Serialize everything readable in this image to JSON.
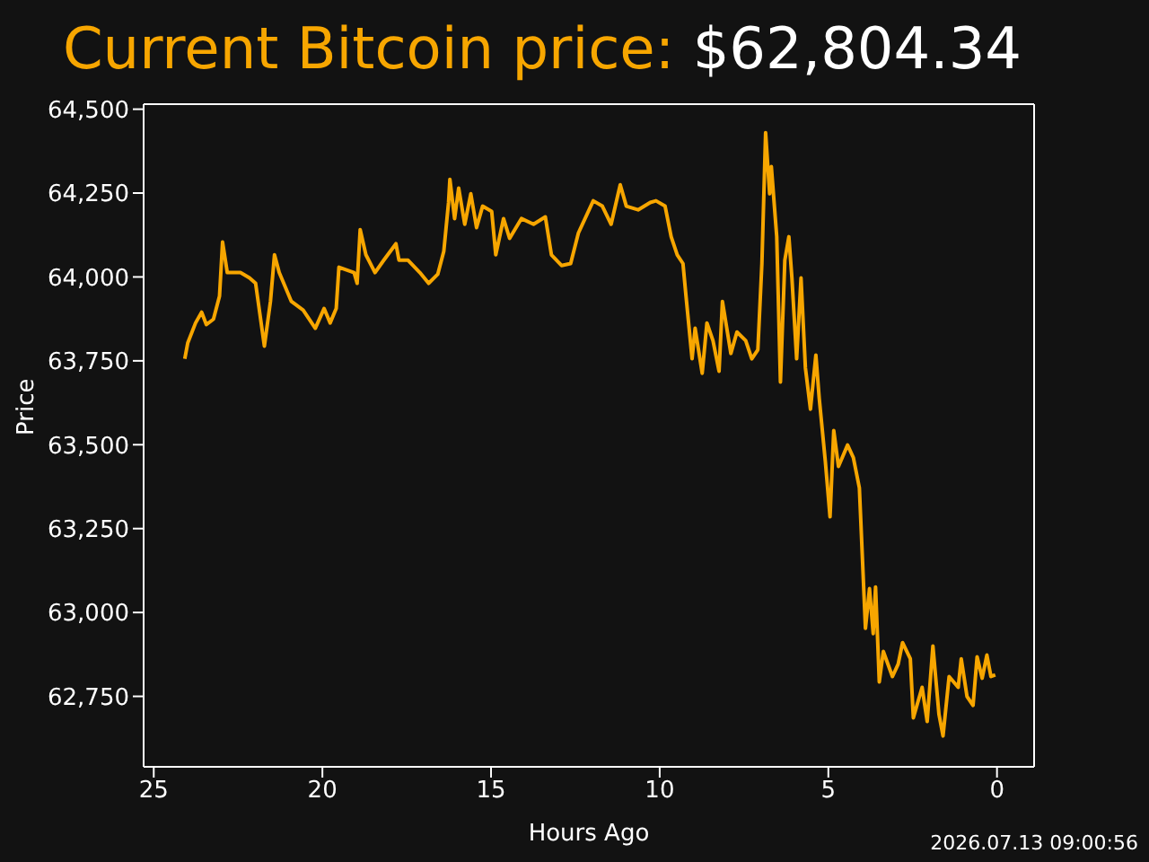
{
  "chart_data": {
    "type": "line",
    "title": "Current Bitcoin price:",
    "subtitle": "$62,804.34",
    "xlabel": "Hours Ago",
    "ylabel": "Price",
    "annotations": [
      "2026.07.13 09:00:56"
    ],
    "x": [
      24.08,
      23.99,
      23.76,
      23.58,
      23.44,
      23.23,
      23.05,
      22.96,
      22.82,
      22.43,
      22.16,
      21.98,
      21.72,
      21.54,
      21.42,
      21.28,
      20.92,
      20.57,
      20.21,
      19.95,
      19.77,
      19.59,
      19.51,
      19.06,
      18.97,
      18.88,
      18.71,
      18.44,
      18.18,
      17.82,
      17.73,
      17.46,
      17.11,
      16.85,
      16.58,
      16.4,
      16.26,
      16.22,
      16.08,
      15.96,
      15.78,
      15.6,
      15.43,
      15.25,
      14.98,
      14.86,
      14.63,
      14.45,
      14.1,
      13.74,
      13.39,
      13.21,
      12.91,
      12.64,
      12.41,
      11.97,
      11.7,
      11.44,
      11.17,
      10.99,
      10.64,
      10.28,
      10.11,
      9.84,
      9.66,
      9.48,
      9.31,
      9.22,
      9.04,
      8.95,
      8.74,
      8.6,
      8.42,
      8.24,
      8.14,
      7.89,
      7.71,
      7.45,
      7.27,
      7.09,
      6.97,
      6.86,
      6.74,
      6.69,
      6.53,
      6.42,
      6.29,
      6.17,
      6.08,
      5.94,
      5.81,
      5.68,
      5.53,
      5.37,
      5.27,
      5.09,
      4.95,
      4.84,
      4.7,
      4.43,
      4.26,
      4.08,
      3.9,
      3.78,
      3.67,
      3.6,
      3.49,
      3.37,
      3.1,
      2.93,
      2.8,
      2.57,
      2.48,
      2.22,
      2.07,
      1.9,
      1.72,
      1.6,
      1.42,
      1.15,
      1.06,
      0.89,
      0.71,
      0.59,
      0.44,
      0.3,
      0.18,
      0.05
    ],
    "series": [
      {
        "color": "#f7a600",
        "values": [
          63756,
          63804,
          63863,
          63895,
          63858,
          63874,
          63943,
          64104,
          64013,
          64013,
          63997,
          63981,
          63794,
          63927,
          64066,
          64013,
          63927,
          63901,
          63847,
          63906,
          63863,
          63906,
          64029,
          64013,
          63981,
          64141,
          64066,
          64013,
          64050,
          64099,
          64050,
          64050,
          64013,
          63981,
          64008,
          64077,
          64222,
          64291,
          64174,
          64265,
          64157,
          64248,
          64147,
          64211,
          64195,
          64066,
          64174,
          64115,
          64174,
          64157,
          64179,
          64066,
          64034,
          64040,
          64131,
          64227,
          64211,
          64157,
          64275,
          64211,
          64200,
          64222,
          64227,
          64211,
          64120,
          64066,
          64040,
          63943,
          63756,
          63847,
          63713,
          63863,
          63810,
          63719,
          63927,
          63772,
          63836,
          63810,
          63756,
          63783,
          64040,
          64430,
          64248,
          64329,
          64120,
          63687,
          64050,
          64120,
          63997,
          63756,
          63997,
          63729,
          63606,
          63767,
          63638,
          63451,
          63285,
          63542,
          63435,
          63499,
          63462,
          63371,
          62953,
          63071,
          62937,
          63076,
          62793,
          62884,
          62809,
          62846,
          62910,
          62862,
          62686,
          62777,
          62675,
          62900,
          62696,
          62632,
          62809,
          62777,
          62862,
          62750,
          62723,
          62868,
          62804,
          62873,
          62809,
          62814
        ]
      }
    ],
    "xlim": [
      25.3,
      -1.1
    ],
    "xticks": [
      25,
      20,
      15,
      10,
      5,
      0
    ],
    "ylim": [
      62540,
      64515
    ],
    "yticks": [
      {
        "value": 62750,
        "label": "62,750"
      },
      {
        "value": 63000,
        "label": "63,000"
      },
      {
        "value": 63250,
        "label": "63,250"
      },
      {
        "value": 63500,
        "label": "63,500"
      },
      {
        "value": 63750,
        "label": "63,750"
      },
      {
        "value": 64000,
        "label": "64,000"
      },
      {
        "value": 64250,
        "label": "64,250"
      },
      {
        "value": 64500,
        "label": "64,500"
      }
    ],
    "grid": false,
    "legend": false,
    "line_style": "solid",
    "marker": "none"
  }
}
